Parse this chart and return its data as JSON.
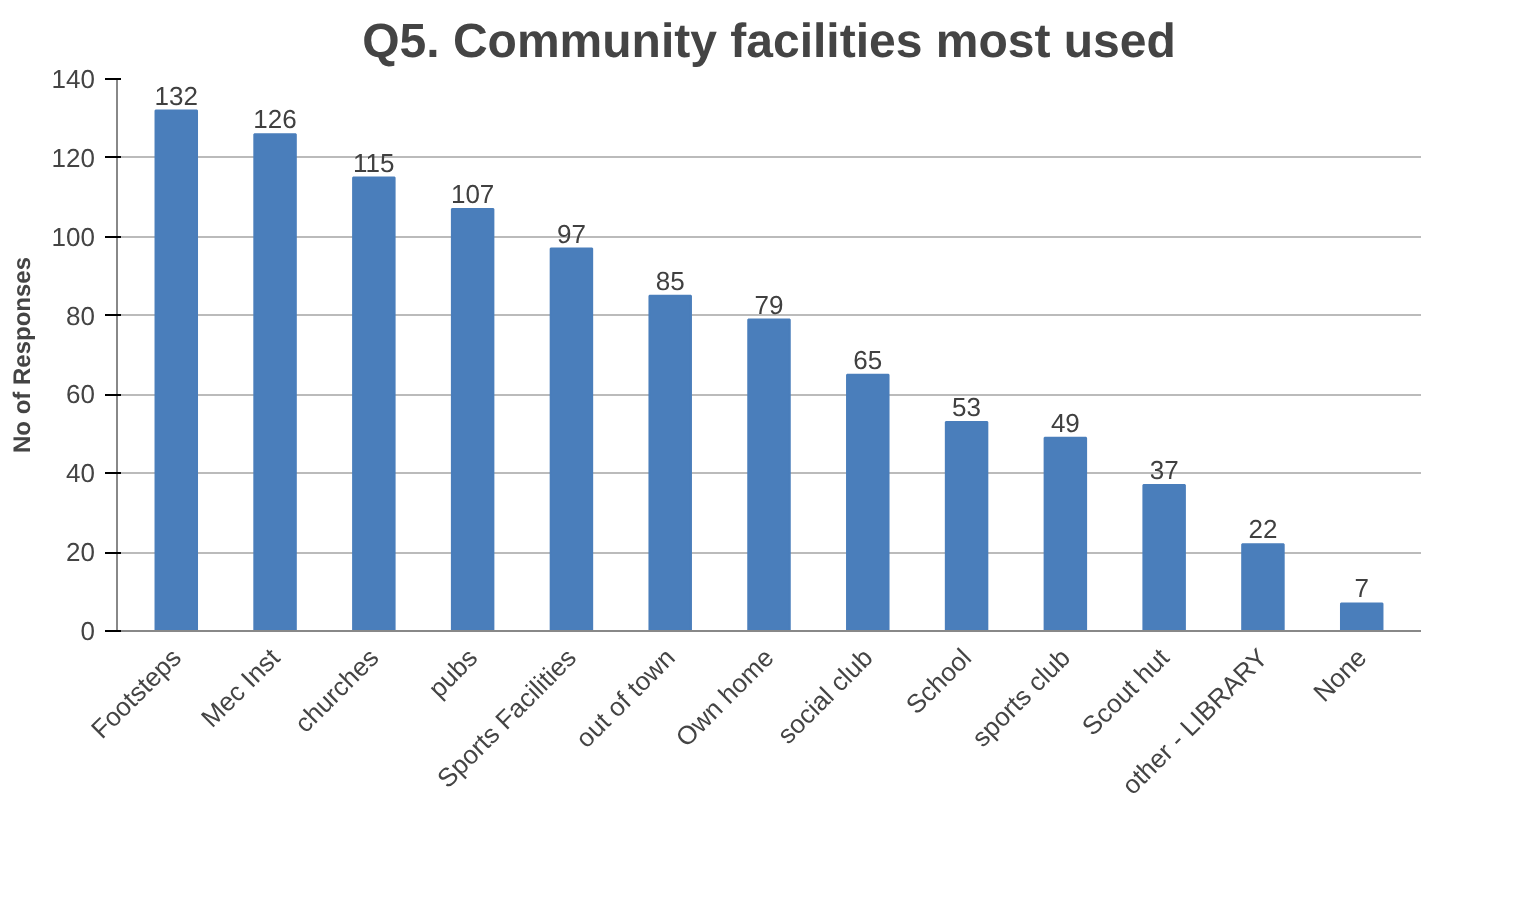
{
  "chart_data": {
    "type": "bar",
    "title": "Q5. Community facilities most used",
    "ylabel": "No of Responses",
    "categories": [
      "Footsteps",
      "Mec Inst",
      "churches",
      "pubs",
      "Sports Facilities",
      "out of town",
      "Own home",
      "social club",
      "School",
      "sports club",
      "Scout hut",
      "other - LIBRARY",
      "None"
    ],
    "values": [
      132,
      126,
      115,
      107,
      97,
      85,
      79,
      65,
      53,
      49,
      37,
      22,
      7
    ],
    "color": "#4a7ebb",
    "ylim": [
      0,
      140
    ],
    "yticks": [
      0,
      20,
      40,
      60,
      80,
      100,
      120,
      140
    ],
    "grid": "y",
    "data_labels": true
  }
}
